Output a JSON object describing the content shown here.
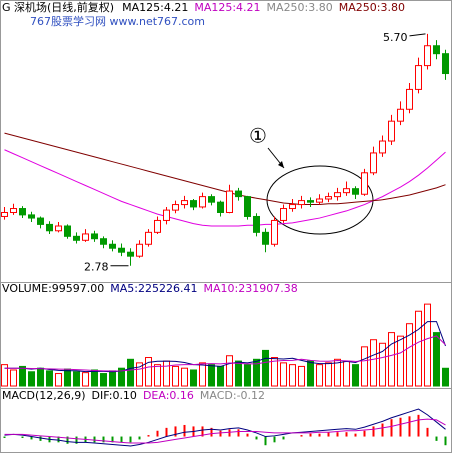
{
  "chart_data": [
    {
      "type": "candlestick",
      "title": "G 深机场(日线,前复权)",
      "header_labels": [
        {
          "text": "MA125:4.21",
          "color": "#000000"
        },
        {
          "text": "MA125:4.21",
          "color": "#c000c0"
        },
        {
          "text": "MA250:3.80",
          "color": "#888888"
        },
        {
          "text": "MA250:3.80",
          "color": "#800000"
        }
      ],
      "watermark": "767股票学习网 www.net767.com",
      "annotations": [
        "5.70",
        "2.78",
        "①"
      ],
      "up_color": "#ff0000",
      "down_color": "#009900",
      "ylim": [
        2.6,
        6.0
      ],
      "open": [
        3.4,
        3.45,
        3.5,
        3.42,
        3.38,
        3.3,
        3.22,
        3.28,
        3.15,
        3.1,
        3.18,
        3.12,
        3.05,
        3.0,
        2.95,
        2.9,
        3.05,
        3.2,
        3.35,
        3.48,
        3.55,
        3.6,
        3.52,
        3.65,
        3.58,
        3.45,
        3.72,
        3.65,
        3.4,
        3.2,
        3.05,
        3.35,
        3.5,
        3.55,
        3.6,
        3.58,
        3.62,
        3.65,
        3.7,
        3.75,
        3.68,
        3.95,
        4.2,
        4.35,
        4.6,
        4.75,
        5.0,
        5.3,
        5.55,
        5.45
      ],
      "high": [
        3.52,
        3.56,
        3.53,
        3.46,
        3.4,
        3.34,
        3.33,
        3.3,
        3.2,
        3.24,
        3.22,
        3.15,
        3.1,
        3.06,
        3.0,
        3.1,
        3.24,
        3.4,
        3.52,
        3.6,
        3.66,
        3.62,
        3.7,
        3.68,
        3.6,
        3.8,
        3.76,
        3.66,
        3.44,
        3.25,
        3.4,
        3.55,
        3.62,
        3.66,
        3.64,
        3.68,
        3.7,
        3.76,
        3.84,
        3.78,
        4.0,
        4.28,
        4.42,
        4.68,
        4.85,
        5.08,
        5.4,
        5.7,
        5.62,
        5.5
      ],
      "low": [
        3.36,
        3.42,
        3.38,
        3.33,
        3.25,
        3.18,
        3.2,
        3.12,
        3.06,
        3.08,
        3.08,
        3.0,
        2.96,
        2.9,
        2.78,
        2.88,
        3.02,
        3.18,
        3.3,
        3.44,
        3.5,
        3.48,
        3.5,
        3.54,
        3.4,
        3.44,
        3.6,
        3.36,
        3.15,
        2.95,
        3.02,
        3.32,
        3.46,
        3.5,
        3.52,
        3.55,
        3.58,
        3.6,
        3.66,
        3.62,
        3.66,
        3.92,
        4.15,
        4.3,
        4.55,
        4.7,
        4.95,
        5.25,
        5.38,
        5.12
      ],
      "close": [
        3.45,
        3.5,
        3.42,
        3.38,
        3.3,
        3.22,
        3.28,
        3.15,
        3.1,
        3.18,
        3.12,
        3.05,
        3.0,
        2.95,
        2.9,
        3.05,
        3.2,
        3.35,
        3.48,
        3.55,
        3.6,
        3.52,
        3.65,
        3.58,
        3.45,
        3.72,
        3.65,
        3.4,
        3.2,
        3.05,
        3.35,
        3.5,
        3.55,
        3.6,
        3.58,
        3.62,
        3.65,
        3.7,
        3.75,
        3.68,
        3.95,
        4.2,
        4.35,
        4.6,
        4.75,
        5.0,
        5.3,
        5.55,
        5.45,
        5.2
      ],
      "series": [
        {
          "name": "MA125",
          "color": "#e000e0",
          "values": [
            4.24,
            4.19,
            4.14,
            4.09,
            4.04,
            3.99,
            3.94,
            3.89,
            3.84,
            3.79,
            3.74,
            3.69,
            3.64,
            3.59,
            3.55,
            3.51,
            3.47,
            3.43,
            3.4,
            3.37,
            3.34,
            3.31,
            3.29,
            3.28,
            3.28,
            3.28,
            3.28,
            3.29,
            3.29,
            3.3,
            3.3,
            3.31,
            3.32,
            3.34,
            3.36,
            3.38,
            3.41,
            3.44,
            3.47,
            3.51,
            3.55,
            3.6,
            3.65,
            3.71,
            3.77,
            3.84,
            3.92,
            4.01,
            4.11,
            4.21
          ]
        },
        {
          "name": "MA250",
          "color": "#800000",
          "values": [
            4.45,
            4.42,
            4.39,
            4.36,
            4.33,
            4.3,
            4.27,
            4.24,
            4.21,
            4.18,
            4.15,
            4.12,
            4.09,
            4.06,
            4.03,
            4.0,
            3.97,
            3.94,
            3.91,
            3.88,
            3.85,
            3.82,
            3.79,
            3.76,
            3.73,
            3.7,
            3.67,
            3.65,
            3.63,
            3.61,
            3.59,
            3.57,
            3.56,
            3.55,
            3.55,
            3.55,
            3.56,
            3.56,
            3.57,
            3.58,
            3.59,
            3.6,
            3.61,
            3.63,
            3.65,
            3.67,
            3.7,
            3.73,
            3.76,
            3.8
          ]
        }
      ]
    },
    {
      "type": "volume",
      "header_labels": [
        {
          "text": "VOLUME:99597.00",
          "color": "#000000"
        },
        {
          "text": "MA5:225226.41",
          "color": "#000080"
        },
        {
          "text": "MA10:231907.38",
          "color": "#c000c0"
        }
      ],
      "ylim": [
        0,
        500000
      ],
      "values": [
        120000,
        90000,
        110000,
        80000,
        100000,
        85000,
        70000,
        95000,
        80000,
        75000,
        90000,
        70000,
        85000,
        100000,
        150000,
        130000,
        160000,
        120000,
        140000,
        110000,
        100000,
        90000,
        130000,
        120000,
        110000,
        170000,
        140000,
        120000,
        150000,
        200000,
        160000,
        130000,
        120000,
        110000,
        140000,
        120000,
        130000,
        150000,
        140000,
        120000,
        220000,
        260000,
        240000,
        300000,
        280000,
        350000,
        420000,
        460000,
        300000,
        99597
      ],
      "series": [
        {
          "name": "MA5",
          "color": "#000080",
          "values": [
            100000,
            100000,
            100000,
            95000,
            100000,
            93000,
            88000,
            86000,
            86000,
            81000,
            82000,
            82000,
            80000,
            84000,
            99000,
            107000,
            133000,
            139000,
            140000,
            138000,
            132000,
            120000,
            118000,
            114000,
            110000,
            126000,
            134000,
            130000,
            138000,
            156000,
            154000,
            152000,
            156000,
            144000,
            132000,
            126000,
            126000,
            130000,
            138000,
            132000,
            152000,
            174000,
            194000,
            236000,
            260000,
            286000,
            318000,
            362000,
            362000,
            225226.41
          ]
        },
        {
          "name": "MA10",
          "color": "#c000c0",
          "values": [
            100000,
            100000,
            100000,
            98000,
            97000,
            96000,
            95000,
            94000,
            92000,
            90000,
            87000,
            85000,
            84000,
            85000,
            90000,
            95000,
            107000,
            110000,
            112000,
            118000,
            120000,
            120000,
            124000,
            126000,
            124000,
            129000,
            127000,
            124000,
            124000,
            133000,
            140000,
            143000,
            144000,
            150000,
            144000,
            140000,
            139000,
            143000,
            141000,
            138000,
            142000,
            150000,
            160000,
            172000,
            186000,
            218000,
            246000,
            266000,
            281000,
            231907.38
          ]
        }
      ]
    },
    {
      "type": "macd",
      "header_labels": [
        {
          "text": "MACD(12,26,9)",
          "color": "#000000"
        },
        {
          "text": "DIF:0.10",
          "color": "#000000"
        },
        {
          "text": "DEA:0.16",
          "color": "#c000c0"
        },
        {
          "text": "MACD:-0.12",
          "color": "#888888"
        }
      ],
      "ylim": [
        -0.2,
        0.45
      ],
      "values": [
        -0.02,
        0.0,
        -0.02,
        -0.04,
        -0.06,
        -0.08,
        -0.08,
        -0.1,
        -0.1,
        -0.08,
        -0.08,
        -0.08,
        -0.08,
        -0.08,
        -0.08,
        -0.04,
        0.02,
        0.08,
        0.12,
        0.14,
        0.16,
        0.14,
        0.14,
        0.12,
        0.08,
        0.1,
        0.1,
        0.04,
        -0.04,
        -0.12,
        -0.08,
        -0.04,
        0.0,
        0.02,
        0.04,
        0.04,
        0.06,
        0.06,
        0.06,
        0.04,
        0.08,
        0.14,
        0.18,
        0.24,
        0.26,
        0.28,
        0.3,
        0.12,
        -0.06,
        -0.12
      ],
      "series": [
        {
          "name": "DIF",
          "color": "#000080",
          "values": [
            0.02,
            0.03,
            0.02,
            0.0,
            -0.02,
            -0.04,
            -0.05,
            -0.07,
            -0.08,
            -0.08,
            -0.09,
            -0.1,
            -0.11,
            -0.12,
            -0.13,
            -0.11,
            -0.08,
            -0.04,
            0.0,
            0.03,
            0.06,
            0.07,
            0.09,
            0.1,
            0.09,
            0.11,
            0.12,
            0.09,
            0.05,
            0.0,
            0.01,
            0.03,
            0.05,
            0.06,
            0.07,
            0.08,
            0.09,
            0.1,
            0.11,
            0.1,
            0.13,
            0.17,
            0.21,
            0.26,
            0.3,
            0.34,
            0.38,
            0.3,
            0.2,
            0.1
          ]
        },
        {
          "name": "DEA",
          "color": "#c000c0",
          "values": [
            0.03,
            0.03,
            0.03,
            0.02,
            0.01,
            0.0,
            -0.01,
            -0.02,
            -0.03,
            -0.04,
            -0.05,
            -0.06,
            -0.07,
            -0.08,
            -0.09,
            -0.09,
            -0.09,
            -0.08,
            -0.06,
            -0.04,
            -0.02,
            0.0,
            0.02,
            0.04,
            0.05,
            0.06,
            0.07,
            0.07,
            0.07,
            0.06,
            0.05,
            0.05,
            0.05,
            0.05,
            0.05,
            0.06,
            0.06,
            0.07,
            0.08,
            0.08,
            0.09,
            0.1,
            0.12,
            0.14,
            0.17,
            0.2,
            0.23,
            0.24,
            0.23,
            0.16
          ]
        }
      ]
    }
  ]
}
